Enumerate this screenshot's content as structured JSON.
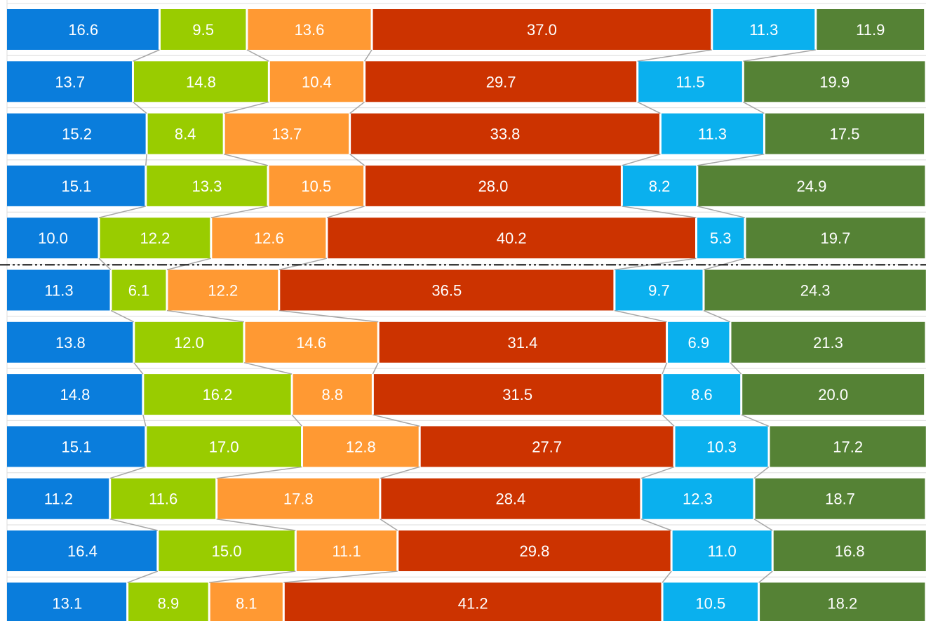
{
  "chart_data": {
    "type": "bar",
    "stacked": true,
    "orientation": "horizontal",
    "series_colors": [
      "#0a7ddc",
      "#99cc00",
      "#ff9933",
      "#cc3300",
      "#0ab0ee",
      "#558235"
    ],
    "grid": true,
    "legend": "none",
    "rows": [
      [
        16.6,
        9.5,
        13.6,
        37.0,
        11.3,
        11.9
      ],
      [
        13.7,
        14.8,
        10.4,
        29.7,
        11.5,
        19.9
      ],
      [
        15.2,
        8.4,
        13.7,
        33.8,
        11.3,
        17.5
      ],
      [
        15.1,
        13.3,
        10.5,
        28.0,
        8.2,
        24.9
      ],
      [
        10.0,
        12.2,
        12.6,
        40.2,
        5.3,
        19.7
      ],
      [
        11.3,
        6.1,
        12.2,
        36.5,
        9.7,
        24.3
      ],
      [
        13.8,
        12.0,
        14.6,
        31.4,
        6.9,
        21.3
      ],
      [
        14.8,
        16.2,
        8.8,
        31.5,
        8.6,
        20.0
      ],
      [
        15.1,
        17.0,
        12.8,
        27.7,
        10.3,
        17.2
      ],
      [
        11.2,
        11.6,
        17.8,
        28.4,
        12.3,
        18.7
      ],
      [
        16.4,
        15.0,
        11.1,
        29.8,
        11.0,
        16.8
      ],
      [
        13.1,
        8.9,
        8.1,
        41.2,
        10.5,
        18.2
      ]
    ],
    "labels": [
      [
        "16.6",
        "9.5",
        "13.6",
        "37.0",
        "11.3",
        "11.9"
      ],
      [
        "13.7",
        "14.8",
        "10.4",
        "29.7",
        "11.5",
        "19.9"
      ],
      [
        "15.2",
        "8.4",
        "13.7",
        "33.8",
        "11.3",
        "17.5"
      ],
      [
        "15.1",
        "13.3",
        "10.5",
        "28.0",
        "8.2",
        "24.9"
      ],
      [
        "10.0",
        "12.2",
        "12.6",
        "40.2",
        "5.3",
        "19.7"
      ],
      [
        "11.3",
        "6.1",
        "12.2",
        "36.5",
        "9.7",
        "24.3"
      ],
      [
        "13.8",
        "12.0",
        "14.6",
        "31.4",
        "6.9",
        "21.3"
      ],
      [
        "14.8",
        "16.2",
        "8.8",
        "31.5",
        "8.6",
        "20.0"
      ],
      [
        "15.1",
        "17.0",
        "12.8",
        "27.7",
        "10.3",
        "17.2"
      ],
      [
        "11.2",
        "11.6",
        "17.8",
        "28.4",
        "12.3",
        "18.7"
      ],
      [
        "16.4",
        "15.0",
        "11.1",
        "29.8",
        "11.0",
        "16.8"
      ],
      [
        "13.1",
        "8.9",
        "8.1",
        "41.2",
        "10.5",
        "18.2"
      ]
    ],
    "separator_after_row": 5
  }
}
